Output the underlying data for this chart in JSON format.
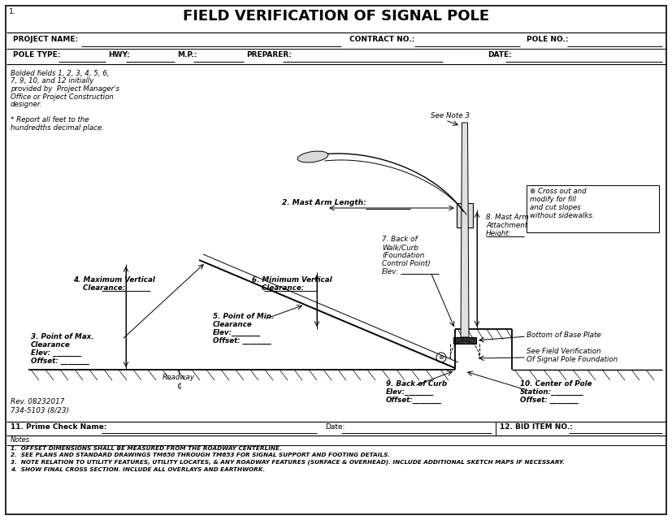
{
  "title": "FIELD VERIFICATION OF SIGNAL POLE",
  "bg_color": "#ffffff",
  "border_color": "#000000",
  "left_notes": [
    "Bolded fields 1, 2, 3, 4, 5, 6,",
    "7, 9, 10, and 12 initially",
    "provided by  Project Manager's",
    "Office or Project Construction",
    "designer.",
    "",
    "* Report all feet to the",
    "hundredths decimal place."
  ],
  "right_box_text": [
    "⊗ Cross out and",
    "modify for fill",
    "and cut slopes",
    "without sidewalks."
  ],
  "rev_text": [
    "Rev. 08232017",
    "734-5103 (8/23)"
  ],
  "page_num": "1.",
  "bottom_left": "11. Prime Check Name:",
  "bottom_mid": "Date:",
  "bottom_right": "12. BID ITEM NO.:",
  "notes_header": "Notes",
  "notes": [
    "1.  OFFSET DIMENSIONS SHALL BE MEASURED FROM THE ROADWAY CENTERLINE.",
    "2.  SEE PLANS AND STANDARD DRAWINGS TM650 THROUGH TM653 FOR SIGNAL SUPPORT AND FOOTING DETAILS.",
    "3.  NOTE RELATION TO UTILITY FEATURES, UTILITY LOCATES, & ANY ROADWAY FEATURES (SURFACE & OVERHEAD). INCLUDE ADDITIONAL SKETCH MAPS IF NECESSARY.",
    "4.  SHOW FINAL CROSS SECTION. INCLUDE ALL OVERLAYS AND EARTHWORK."
  ]
}
